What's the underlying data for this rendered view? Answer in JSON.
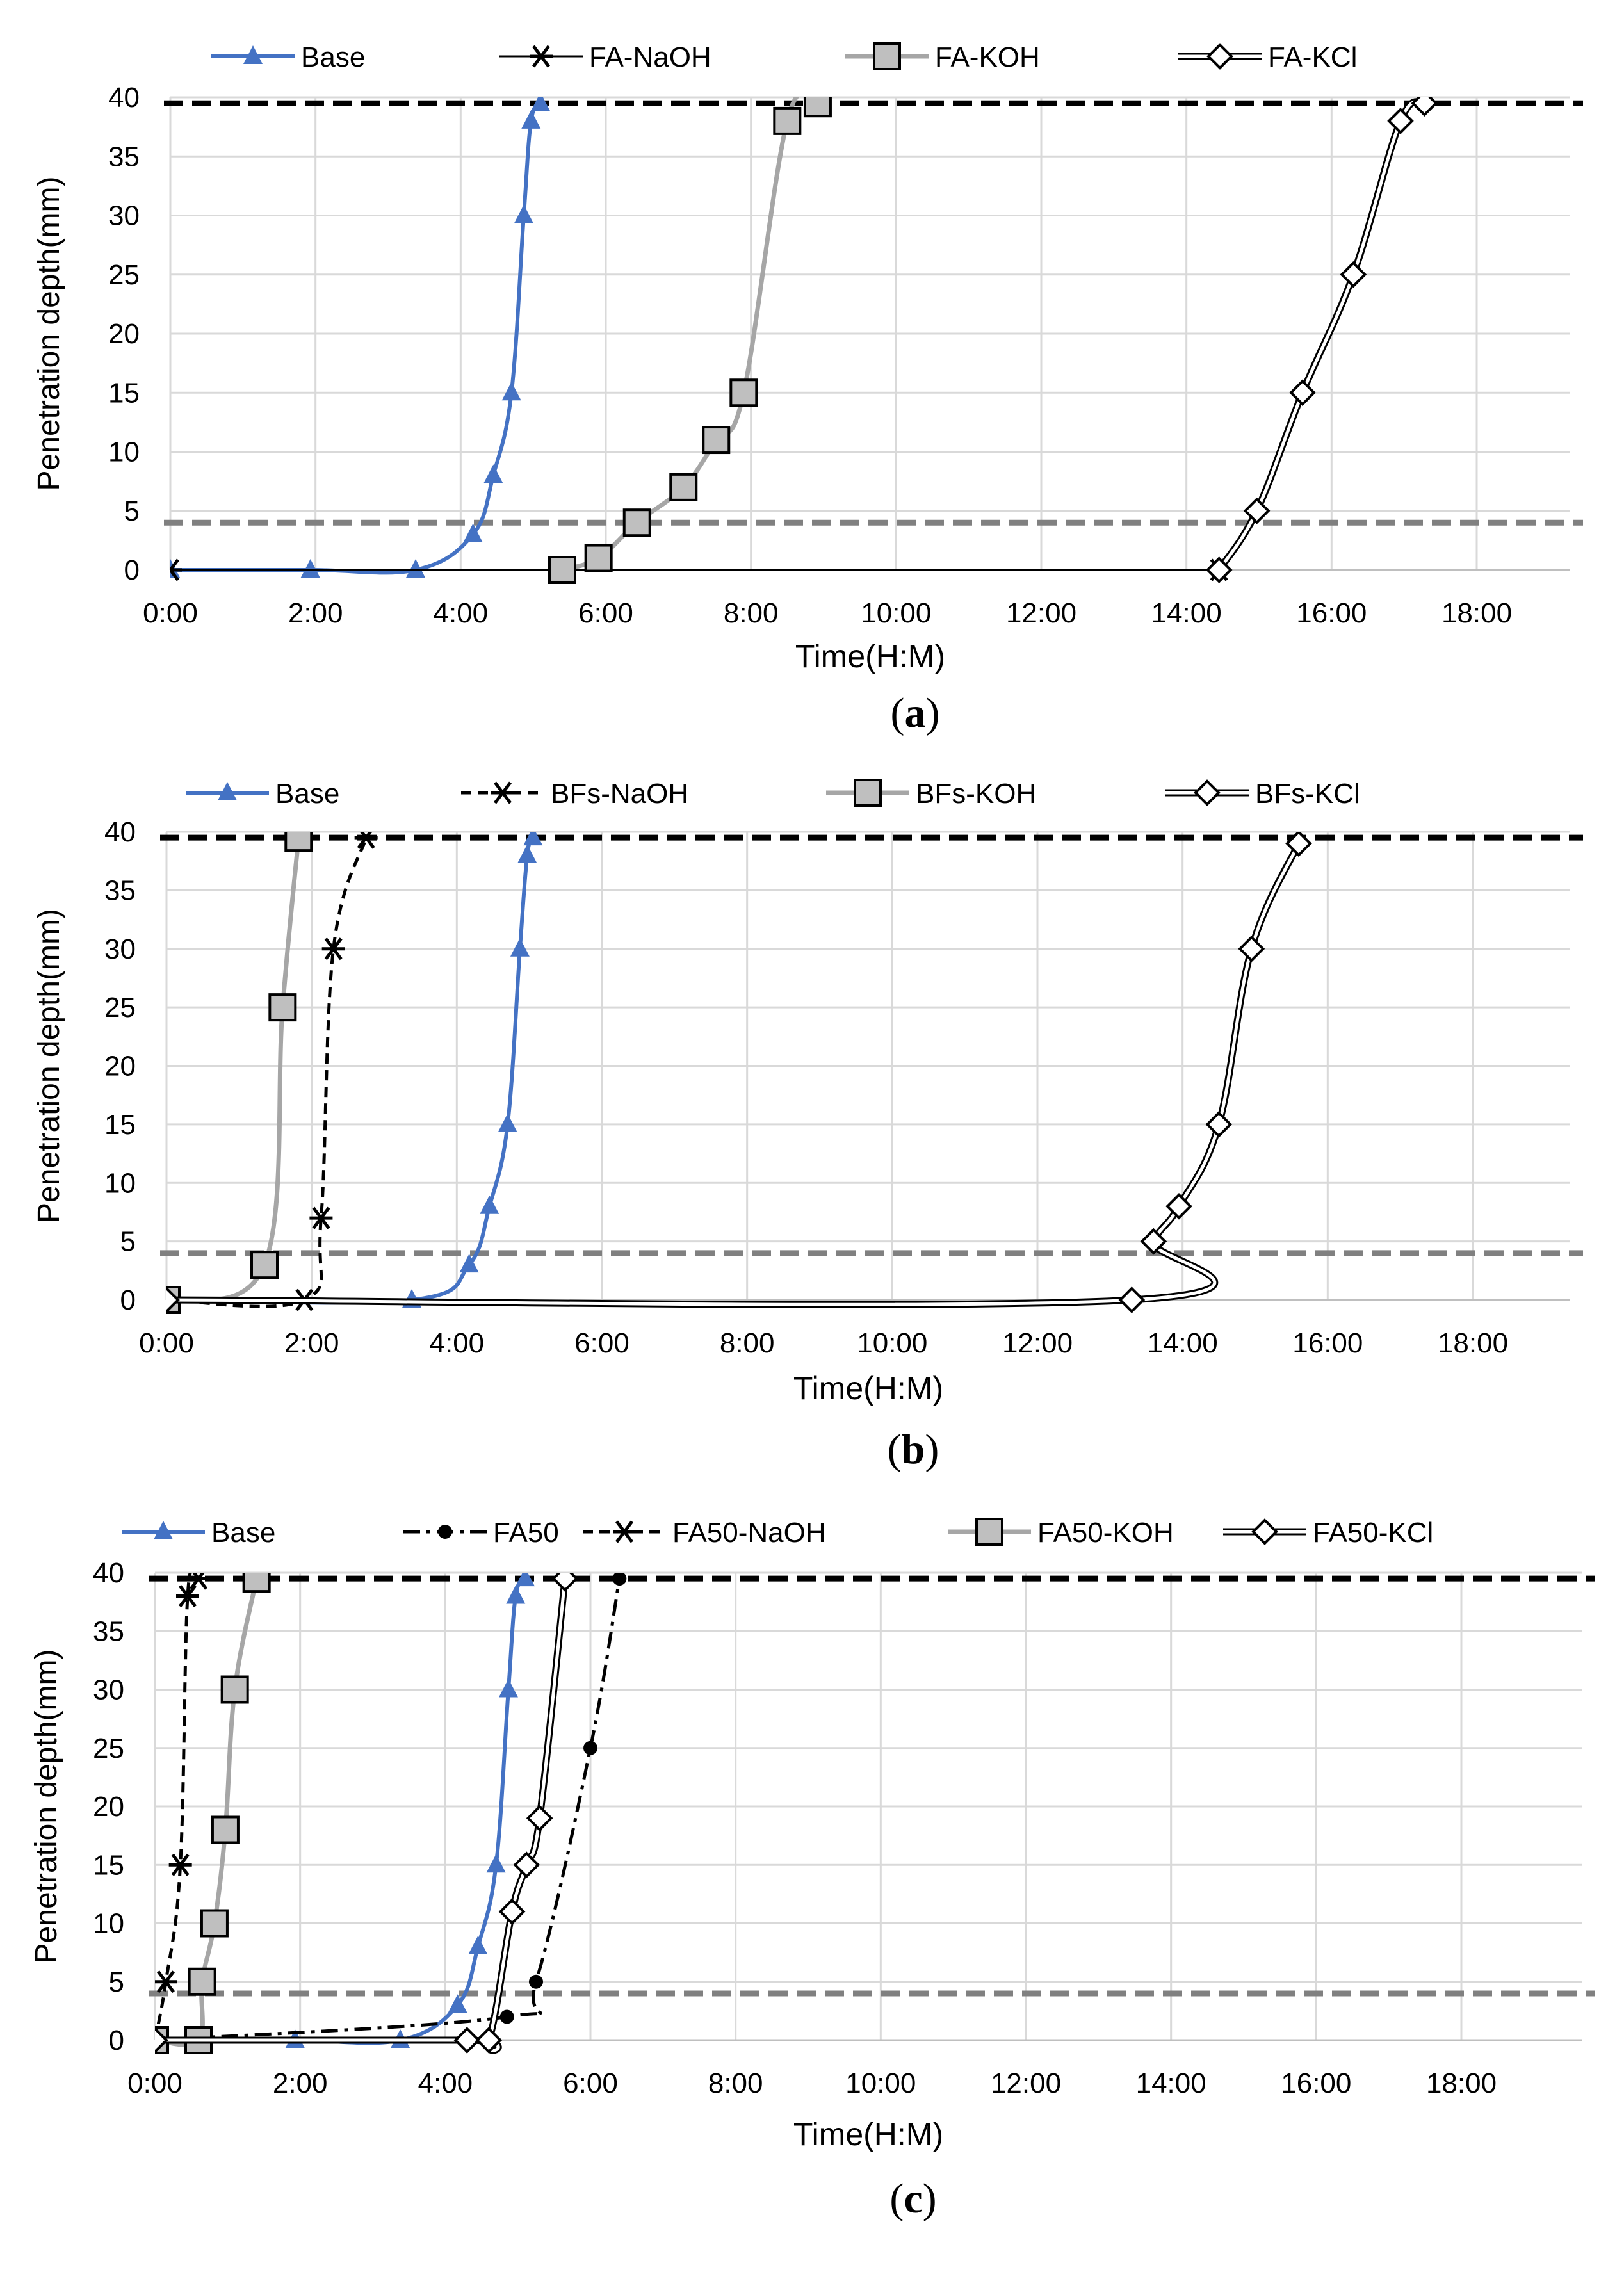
{
  "panels": [
    {
      "caption_open": "(",
      "caption_letter": "a",
      "caption_close": ")",
      "chart_data": {
        "type": "line",
        "xlabel": "Time(H:M)",
        "ylabel": "Penetration depth(mm)",
        "xlim": [
          0,
          19.2
        ],
        "ylim": [
          0,
          40
        ],
        "x_ticks": [
          "0:00",
          "2:00",
          "4:00",
          "6:00",
          "8:00",
          "10:00",
          "12:00",
          "14:00",
          "16:00",
          "18:00"
        ],
        "y_ticks": [
          "0",
          "5",
          "10",
          "15",
          "20",
          "25",
          "30",
          "35",
          "40"
        ],
        "grid": true,
        "legend_position": "top",
        "reference_lines": [
          {
            "y": 39.5,
            "style": "black-dashed"
          },
          {
            "y": 4,
            "style": "gray-dashed"
          }
        ],
        "series": [
          {
            "name": "Base",
            "style": "blue-triangle",
            "points": [
              [
                0,
                0
              ],
              [
                1.93,
                0
              ],
              [
                3.38,
                0
              ],
              [
                4.17,
                3
              ],
              [
                4.45,
                8
              ],
              [
                4.7,
                15
              ],
              [
                4.87,
                30
              ],
              [
                4.97,
                38
              ],
              [
                5.1,
                39.5
              ]
            ]
          },
          {
            "name": "FA-NaOH",
            "style": "black-star",
            "points": [
              [
                0,
                0
              ],
              [
                14.45,
                0
              ]
            ]
          },
          {
            "name": "FA-KOH",
            "style": "gray-square",
            "points": [
              [
                5.4,
                0
              ],
              [
                5.9,
                1
              ],
              [
                6.43,
                4
              ],
              [
                7.07,
                7
              ],
              [
                7.52,
                11
              ],
              [
                7.9,
                15
              ],
              [
                8.5,
                38
              ],
              [
                8.92,
                39.5
              ]
            ]
          },
          {
            "name": "FA-KCl",
            "style": "double-diamond",
            "points": [
              [
                14.45,
                0
              ],
              [
                14.97,
                5
              ],
              [
                15.6,
                15
              ],
              [
                16.3,
                25
              ],
              [
                16.95,
                38
              ],
              [
                17.28,
                39.5
              ]
            ]
          }
        ]
      }
    },
    {
      "caption_open": "(",
      "caption_letter": "b",
      "caption_close": ")",
      "chart_data": {
        "type": "line",
        "xlabel": "Time(H:M)",
        "ylabel": "Penetration depth(mm)",
        "xlim": [
          0,
          19.2
        ],
        "ylim": [
          0,
          40
        ],
        "x_ticks": [
          "0:00",
          "2:00",
          "4:00",
          "6:00",
          "8:00",
          "10:00",
          "12:00",
          "14:00",
          "16:00",
          "18:00"
        ],
        "y_ticks": [
          "0",
          "5",
          "10",
          "15",
          "20",
          "25",
          "30",
          "35",
          "40"
        ],
        "grid": true,
        "legend_position": "top",
        "reference_lines": [
          {
            "y": 39.5,
            "style": "black-dashed"
          },
          {
            "y": 4,
            "style": "gray-dashed"
          }
        ],
        "series": [
          {
            "name": "Base",
            "style": "blue-triangle",
            "points": [
              [
                0,
                0
              ],
              [
                3.38,
                0
              ],
              [
                4.17,
                3
              ],
              [
                4.45,
                8
              ],
              [
                4.7,
                15
              ],
              [
                4.87,
                30
              ],
              [
                4.97,
                38
              ],
              [
                5.05,
                39.5
              ]
            ]
          },
          {
            "name": "BFs-NaOH",
            "style": "black-star-dashed",
            "points": [
              [
                0,
                0
              ],
              [
                1.9,
                0
              ],
              [
                2.13,
                7
              ],
              [
                2.3,
                30
              ],
              [
                2.75,
                39.5
              ]
            ]
          },
          {
            "name": "BFs-KOH",
            "style": "gray-square",
            "points": [
              [
                0,
                0
              ],
              [
                1.35,
                3
              ],
              [
                1.6,
                25
              ],
              [
                1.82,
                39.5
              ]
            ]
          },
          {
            "name": "BFs-KCl",
            "style": "double-diamond",
            "points": [
              [
                0,
                0
              ],
              [
                13.3,
                0
              ],
              [
                13.6,
                5
              ],
              [
                13.95,
                8
              ],
              [
                14.5,
                15
              ],
              [
                14.95,
                30
              ],
              [
                15.6,
                39
              ]
            ]
          }
        ]
      }
    },
    {
      "caption_open": "(",
      "caption_letter": "c",
      "caption_close": ")",
      "chart_data": {
        "type": "line",
        "xlabel": "Time(H:M)",
        "ylabel": "Penetration depth(mm)",
        "xlim": [
          0,
          19.2
        ],
        "ylim": [
          0,
          40
        ],
        "x_ticks": [
          "0:00",
          "2:00",
          "4:00",
          "6:00",
          "8:00",
          "10:00",
          "12:00",
          "14:00",
          "16:00",
          "18:00"
        ],
        "y_ticks": [
          "0",
          "5",
          "10",
          "15",
          "20",
          "25",
          "30",
          "35",
          "40"
        ],
        "grid": true,
        "legend_position": "top",
        "reference_lines": [
          {
            "y": 39.5,
            "style": "black-dashed"
          },
          {
            "y": 4,
            "style": "gray-dashed"
          }
        ],
        "series": [
          {
            "name": "Base",
            "style": "blue-triangle",
            "points": [
              [
                0,
                0
              ],
              [
                1.93,
                0
              ],
              [
                3.38,
                0
              ],
              [
                4.17,
                3
              ],
              [
                4.45,
                8
              ],
              [
                4.7,
                15
              ],
              [
                4.87,
                30
              ],
              [
                4.97,
                38
              ],
              [
                5.1,
                39.5
              ]
            ]
          },
          {
            "name": "FA50",
            "style": "black-dot-dashdot",
            "points": [
              [
                0,
                0
              ],
              [
                4.85,
                2
              ],
              [
                5.25,
                5
              ],
              [
                6.0,
                25
              ],
              [
                6.4,
                39.5
              ]
            ]
          },
          {
            "name": "FA50-NaOH",
            "style": "black-star-dashed",
            "points": [
              [
                0,
                0
              ],
              [
                0.15,
                5
              ],
              [
                0.35,
                15
              ],
              [
                0.45,
                38
              ],
              [
                0.6,
                39.5
              ]
            ]
          },
          {
            "name": "FA50-KOH",
            "style": "gray-square",
            "points": [
              [
                0,
                0
              ],
              [
                0.6,
                0
              ],
              [
                0.65,
                5
              ],
              [
                0.82,
                10
              ],
              [
                0.97,
                18
              ],
              [
                1.1,
                30
              ],
              [
                1.4,
                39.5
              ]
            ]
          },
          {
            "name": "FA50-KCl",
            "style": "double-diamond",
            "points": [
              [
                0,
                0
              ],
              [
                4.3,
                0
              ],
              [
                4.6,
                0
              ],
              [
                4.92,
                11
              ],
              [
                5.12,
                15
              ],
              [
                5.3,
                19
              ],
              [
                5.65,
                39.5
              ]
            ]
          }
        ]
      }
    }
  ],
  "colors": {
    "base_blue": "#4472C4",
    "gray_series": "#A6A6A6",
    "gray_ref": "#808080",
    "square_fill": "#BFBFBF",
    "grid": "#D9D9D9",
    "black": "#000000"
  }
}
